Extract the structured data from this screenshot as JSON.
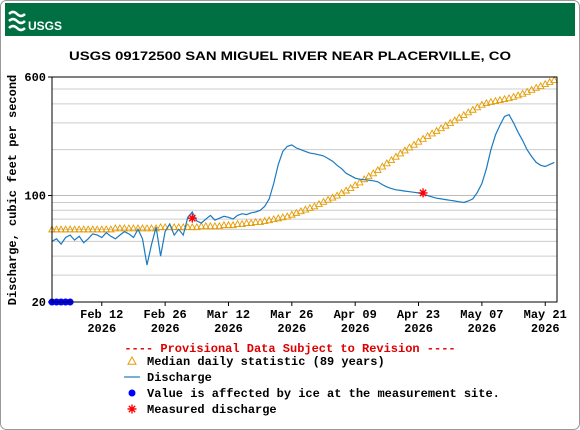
{
  "header": {
    "logo": "USGS"
  },
  "chart_data": {
    "type": "line",
    "title": "USGS 09172500 SAN MIGUEL RIVER NEAR PLACERVILLE, CO",
    "y_label": "Discharge, cubic feet per second",
    "note": "---- Provisional Data Subject to Revision ----",
    "log_y": true,
    "ylim": [
      20,
      600
    ],
    "yticks": [
      20,
      100,
      600
    ],
    "y_minor_gridlines": [
      30,
      40,
      50,
      60,
      70,
      80,
      90,
      200,
      300,
      400,
      500
    ],
    "xlim": [
      "2026-02-01",
      "2026-05-23"
    ],
    "xticks": [
      {
        "value": "2026-02-12",
        "label": [
          "Feb 12",
          "2026"
        ]
      },
      {
        "value": "2026-02-26",
        "label": [
          "Feb 26",
          "2026"
        ]
      },
      {
        "value": "2026-03-12",
        "label": [
          "Mar 12",
          "2026"
        ]
      },
      {
        "value": "2026-03-26",
        "label": [
          "Mar 26",
          "2026"
        ]
      },
      {
        "value": "2026-04-09",
        "label": [
          "Apr 09",
          "2026"
        ]
      },
      {
        "value": "2026-04-23",
        "label": [
          "Apr 23",
          "2026"
        ]
      },
      {
        "value": "2026-05-07",
        "label": [
          "May 07",
          "2026"
        ]
      },
      {
        "value": "2026-05-21",
        "label": [
          "May 21",
          "2026"
        ]
      }
    ],
    "x": [
      "2026-02-01",
      "2026-02-02",
      "2026-02-03",
      "2026-02-04",
      "2026-02-05",
      "2026-02-06",
      "2026-02-07",
      "2026-02-08",
      "2026-02-09",
      "2026-02-10",
      "2026-02-11",
      "2026-02-12",
      "2026-02-13",
      "2026-02-14",
      "2026-02-15",
      "2026-02-16",
      "2026-02-17",
      "2026-02-18",
      "2026-02-19",
      "2026-02-20",
      "2026-02-21",
      "2026-02-22",
      "2026-02-23",
      "2026-02-24",
      "2026-02-25",
      "2026-02-26",
      "2026-02-27",
      "2026-02-28",
      "2026-03-01",
      "2026-03-02",
      "2026-03-03",
      "2026-03-04",
      "2026-03-05",
      "2026-03-06",
      "2026-03-07",
      "2026-03-08",
      "2026-03-09",
      "2026-03-10",
      "2026-03-11",
      "2026-03-12",
      "2026-03-13",
      "2026-03-14",
      "2026-03-15",
      "2026-03-16",
      "2026-03-17",
      "2026-03-18",
      "2026-03-19",
      "2026-03-20",
      "2026-03-21",
      "2026-03-22",
      "2026-03-23",
      "2026-03-24",
      "2026-03-25",
      "2026-03-26",
      "2026-03-27",
      "2026-03-28",
      "2026-03-29",
      "2026-03-30",
      "2026-03-31",
      "2026-04-01",
      "2026-04-02",
      "2026-04-03",
      "2026-04-04",
      "2026-04-05",
      "2026-04-06",
      "2026-04-07",
      "2026-04-08",
      "2026-04-09",
      "2026-04-10",
      "2026-04-11",
      "2026-04-12",
      "2026-04-13",
      "2026-04-14",
      "2026-04-15",
      "2026-04-16",
      "2026-04-17",
      "2026-04-18",
      "2026-04-19",
      "2026-04-20",
      "2026-04-21",
      "2026-04-22",
      "2026-04-23",
      "2026-04-24",
      "2026-04-25",
      "2026-04-26",
      "2026-04-27",
      "2026-04-28",
      "2026-04-29",
      "2026-04-30",
      "2026-05-01",
      "2026-05-02",
      "2026-05-03",
      "2026-05-04",
      "2026-05-05",
      "2026-05-06",
      "2026-05-07",
      "2026-05-08",
      "2026-05-09",
      "2026-05-10",
      "2026-05-11",
      "2026-05-12",
      "2026-05-13",
      "2026-05-14",
      "2026-05-15",
      "2026-05-16",
      "2026-05-17",
      "2026-05-18",
      "2026-05-19",
      "2026-05-20",
      "2026-05-21",
      "2026-05-22",
      "2026-05-23"
    ],
    "series": [
      {
        "name": "Median daily statistic (89 years)",
        "color": "#e69a00",
        "marker": "triangle",
        "values": [
          60,
          60,
          60,
          60,
          60,
          60,
          60,
          60,
          60,
          60,
          60,
          60,
          60,
          60,
          61,
          61,
          61,
          61,
          61,
          61,
          61,
          61,
          61,
          61,
          62,
          62,
          62,
          62,
          62,
          62,
          62,
          62,
          62,
          63,
          63,
          63,
          63,
          63,
          64,
          64,
          64,
          65,
          65,
          66,
          66,
          67,
          67,
          68,
          69,
          70,
          71,
          72,
          73,
          75,
          77,
          79,
          81,
          83,
          85,
          88,
          91,
          94,
          97,
          100,
          104,
          108,
          112,
          117,
          122,
          128,
          134,
          140,
          147,
          155,
          163,
          171,
          180,
          189,
          198,
          207,
          216,
          226,
          236,
          246,
          256,
          266,
          277,
          288,
          300,
          312,
          325,
          338,
          352,
          366,
          380,
          395,
          405,
          412,
          418,
          424,
          430,
          436,
          445,
          455,
          467,
          480,
          495,
          510,
          524,
          540,
          557,
          573
        ]
      },
      {
        "name": "Discharge",
        "color": "#1a7ac0",
        "marker": "line",
        "values": [
          50,
          52,
          48,
          53,
          55,
          51,
          54,
          49,
          52,
          56,
          55,
          53,
          57,
          54,
          52,
          55,
          58,
          56,
          53,
          60,
          52,
          35,
          48,
          62,
          40,
          58,
          65,
          55,
          60,
          55,
          72,
          78,
          68,
          66,
          70,
          74,
          69,
          71,
          73,
          72,
          70,
          74,
          76,
          75,
          77,
          78,
          80,
          85,
          95,
          120,
          160,
          195,
          210,
          215,
          205,
          200,
          195,
          190,
          188,
          185,
          182,
          175,
          168,
          158,
          150,
          140,
          135,
          130,
          128,
          127,
          126,
          125,
          123,
          118,
          114,
          111,
          109,
          108,
          107,
          106,
          105,
          104,
          102,
          100,
          98,
          96,
          95,
          94,
          93,
          92,
          91,
          90,
          92,
          95,
          105,
          120,
          150,
          200,
          250,
          290,
          330,
          340,
          300,
          260,
          230,
          200,
          180,
          165,
          158,
          155,
          160,
          165
        ]
      },
      {
        "name": "Value is affected by ice at the measurement site.",
        "color": "#0000ff",
        "marker": "dot",
        "x": [
          "2026-02-01",
          "2026-02-02",
          "2026-02-03",
          "2026-02-04",
          "2026-02-05"
        ],
        "values": [
          20,
          20,
          20,
          20,
          20
        ]
      },
      {
        "name": "Measured discharge",
        "color": "#ff0000",
        "marker": "asterisk",
        "x": [
          "2026-03-04",
          "2026-04-24"
        ],
        "values": [
          71,
          104
        ]
      }
    ]
  }
}
